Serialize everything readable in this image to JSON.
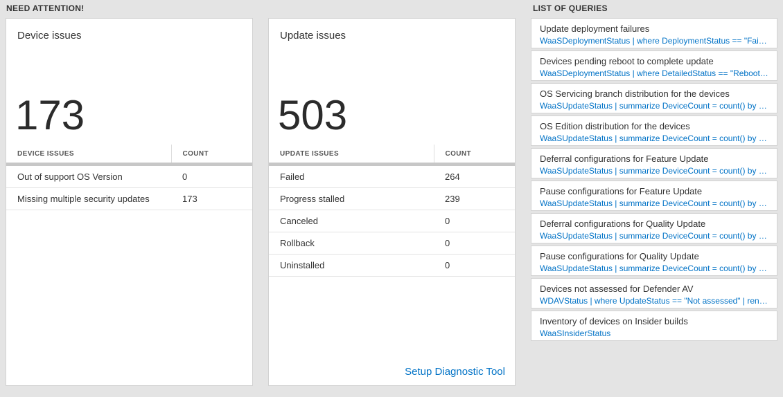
{
  "accent_blue": "#0072c6",
  "need_attention": {
    "header": "NEED ATTENTION!",
    "device_card": {
      "title": "Device issues",
      "big_number": "173",
      "table": {
        "headers": [
          "DEVICE ISSUES",
          "COUNT"
        ],
        "rows": [
          {
            "label": "Out of support OS Version",
            "count": "0"
          },
          {
            "label": "Missing multiple security updates",
            "count": "173"
          }
        ]
      }
    },
    "update_card": {
      "title": "Update issues",
      "big_number": "503",
      "table": {
        "headers": [
          "UPDATE ISSUES",
          "COUNT"
        ],
        "rows": [
          {
            "label": "Failed",
            "count": "264"
          },
          {
            "label": "Progress stalled",
            "count": "239"
          },
          {
            "label": "Canceled",
            "count": "0"
          },
          {
            "label": "Rollback",
            "count": "0"
          },
          {
            "label": "Uninstalled",
            "count": "0"
          }
        ]
      },
      "footer_link": "Setup Diagnostic Tool"
    }
  },
  "queries": {
    "header": "LIST OF QUERIES",
    "items": [
      {
        "title": "Update deployment failures",
        "query": "WaaSDeploymentStatus | where DeploymentStatus == \"Failed\" |..."
      },
      {
        "title": "Devices pending reboot to complete update",
        "query": "WaaSDeploymentStatus | where DetailedStatus == \"Reboot pend..."
      },
      {
        "title": "OS Servicing branch distribution for the devices",
        "query": "WaaSUpdateStatus | summarize DeviceCount = count() by OSSer..."
      },
      {
        "title": "OS Edition distribution for the devices",
        "query": "WaaSUpdateStatus | summarize DeviceCount = count() by OSEdit..."
      },
      {
        "title": "Deferral configurations for Feature Update",
        "query": "WaaSUpdateStatus | summarize DeviceCount = count() by Featur..."
      },
      {
        "title": "Pause configurations for Feature Update",
        "query": "WaaSUpdateStatus | summarize DeviceCount = count() by Featur..."
      },
      {
        "title": "Deferral configurations for Quality Update",
        "query": "WaaSUpdateStatus | summarize DeviceCount = count() by Qualit..."
      },
      {
        "title": "Pause configurations for Quality Update",
        "query": "WaaSUpdateStatus | summarize DeviceCount = count() by Qualit..."
      },
      {
        "title": "Devices not assessed for Defender AV",
        "query": "WDAVStatus | where UpdateStatus == \"Not assessed\" | render ta..."
      },
      {
        "title": "Inventory of devices on Insider builds",
        "query": "WaaSInsiderStatus"
      }
    ]
  }
}
